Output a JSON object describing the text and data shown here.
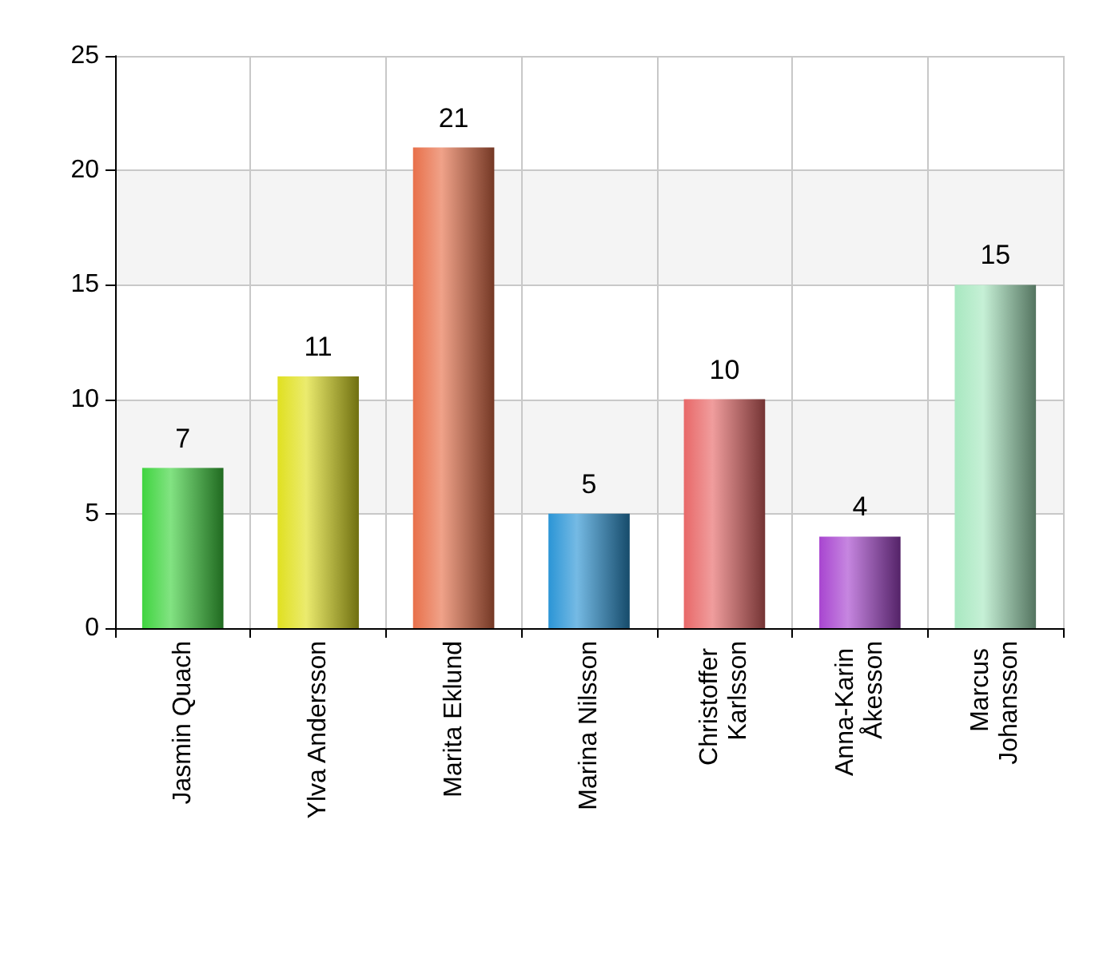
{
  "chart_data": {
    "type": "bar",
    "categories": [
      "Jasmin Quach",
      "Ylva Andersson",
      "Marita Eklund",
      "Marina Nilsson",
      "Christoffer Karlsson",
      "Anna-Karin Åkesson",
      "Marcus Johansson"
    ],
    "values": [
      7,
      11,
      21,
      5,
      10,
      4,
      15
    ],
    "colors": [
      "#3fd43f",
      "#e0e020",
      "#e8704a",
      "#2b95d6",
      "#e86868",
      "#a845d0",
      "#a8e8c0"
    ],
    "ylim": [
      0,
      25
    ],
    "yticks": [
      0,
      5,
      10,
      15,
      20,
      25
    ],
    "grid": true,
    "data_labels": true
  }
}
